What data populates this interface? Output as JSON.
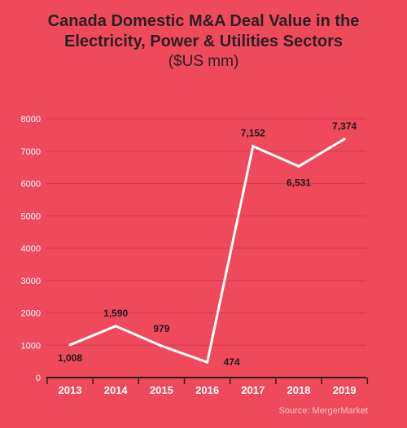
{
  "chart_data": {
    "type": "line",
    "title_lines": [
      "Canada Domestic M&A Deal Value in the",
      "Electricity, Power & Utilities Sectors"
    ],
    "subtitle": "($US mm)",
    "categories": [
      "2013",
      "2014",
      "2015",
      "2016",
      "2017",
      "2018",
      "2019"
    ],
    "values": [
      1008,
      1590,
      979,
      474,
      7152,
      6531,
      7374
    ],
    "data_labels": [
      "1,008",
      "1,590",
      "979",
      "474",
      "7,152",
      "6,531",
      "7,374"
    ],
    "ylim": [
      0,
      8000
    ],
    "yticks": [
      0,
      1000,
      2000,
      3000,
      4000,
      5000,
      6000,
      7000,
      8000
    ],
    "grid": true,
    "colors": {
      "background": "#ee4a5c",
      "line": "#ffffff",
      "grid": "#d63c4f",
      "axis": "#2b1f24",
      "tick_text": "#ffffff",
      "data_label": "#1e1a1c"
    }
  },
  "source": "Source: MergerMarket"
}
